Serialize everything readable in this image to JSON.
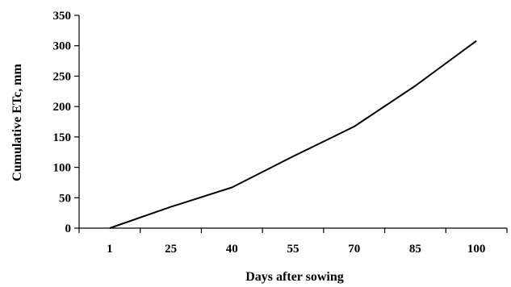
{
  "chart_data": {
    "type": "line",
    "title": "",
    "xlabel": "Days after sowing",
    "ylabel": "Cumulative ETc, mm",
    "categories": [
      "1",
      "25",
      "40",
      "55",
      "70",
      "85",
      "100"
    ],
    "series": [
      {
        "name": "",
        "values": [
          0,
          35,
          67,
          118,
          167,
          234,
          308
        ]
      }
    ],
    "ylim": [
      0,
      350
    ],
    "yticks": [
      0,
      50,
      100,
      150,
      200,
      250,
      300,
      350
    ],
    "grid": false,
    "legend": "none",
    "line_color": "#000000"
  }
}
